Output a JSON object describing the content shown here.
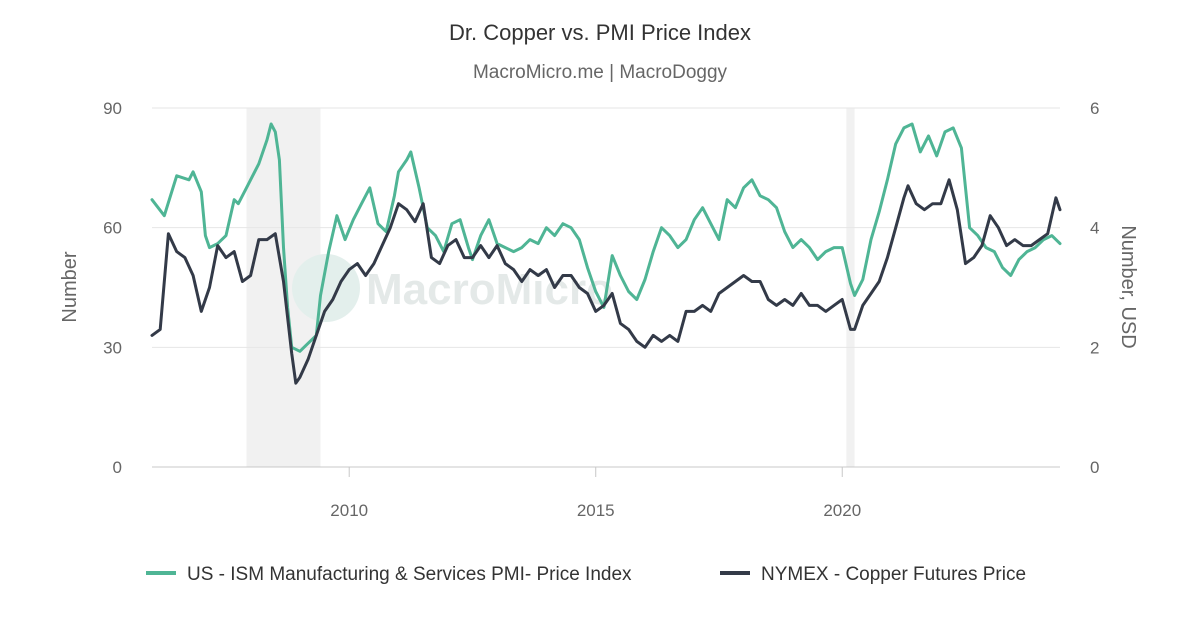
{
  "chart_data": {
    "type": "line",
    "title": "Dr. Copper vs. PMI Price Index",
    "subtitle": "MacroMicro.me | MacroDoggy",
    "watermark": "MacroMicro",
    "x_range": [
      "2006-01-01",
      "2024-06-01"
    ],
    "x_ticks": [
      "2010",
      "2015",
      "2020"
    ],
    "y_left": {
      "label": "Number",
      "ticks": [
        "0",
        "30",
        "60",
        "90"
      ],
      "range": [
        0,
        90
      ]
    },
    "y_right": {
      "label": "Number, USD",
      "ticks": [
        "0",
        "2",
        "4",
        "6"
      ],
      "range": [
        0,
        6
      ]
    },
    "recessions": [
      {
        "start": "2007-12-01",
        "end": "2009-06-01"
      },
      {
        "start": "2020-02-01",
        "end": "2020-04-01"
      }
    ],
    "legend_position": "bottom",
    "series": [
      {
        "name": "US - ISM Manufacturing & Services PMI- Price Index",
        "axis": "left",
        "color": "#4fb595",
        "points": [
          [
            "2006-01",
            67
          ],
          [
            "2006-04",
            63
          ],
          [
            "2006-07",
            73
          ],
          [
            "2006-10",
            72
          ],
          [
            "2006-11",
            74
          ],
          [
            "2007-01",
            69
          ],
          [
            "2007-02",
            58
          ],
          [
            "2007-03",
            55
          ],
          [
            "2007-05",
            56
          ],
          [
            "2007-07",
            58
          ],
          [
            "2007-09",
            67
          ],
          [
            "2007-10",
            66
          ],
          [
            "2007-12",
            70
          ],
          [
            "2008-01",
            72
          ],
          [
            "2008-03",
            76
          ],
          [
            "2008-05",
            82
          ],
          [
            "2008-06",
            86
          ],
          [
            "2008-07",
            84
          ],
          [
            "2008-08",
            77
          ],
          [
            "2008-09",
            55
          ],
          [
            "2008-10",
            40
          ],
          [
            "2008-11",
            30
          ],
          [
            "2009-01",
            29
          ],
          [
            "2009-03",
            31
          ],
          [
            "2009-05",
            33
          ],
          [
            "2009-06",
            43
          ],
          [
            "2009-08",
            54
          ],
          [
            "2009-10",
            63
          ],
          [
            "2009-12",
            57
          ],
          [
            "2010-02",
            62
          ],
          [
            "2010-04",
            66
          ],
          [
            "2010-06",
            70
          ],
          [
            "2010-08",
            61
          ],
          [
            "2010-10",
            59
          ],
          [
            "2010-12",
            68
          ],
          [
            "2011-01",
            74
          ],
          [
            "2011-03",
            77
          ],
          [
            "2011-04",
            79
          ],
          [
            "2011-06",
            70
          ],
          [
            "2011-08",
            60
          ],
          [
            "2011-10",
            58
          ],
          [
            "2011-12",
            54
          ],
          [
            "2012-02",
            61
          ],
          [
            "2012-04",
            62
          ],
          [
            "2012-06",
            55
          ],
          [
            "2012-07",
            52
          ],
          [
            "2012-09",
            58
          ],
          [
            "2012-11",
            62
          ],
          [
            "2013-01",
            56
          ],
          [
            "2013-03",
            55
          ],
          [
            "2013-05",
            54
          ],
          [
            "2013-07",
            55
          ],
          [
            "2013-09",
            57
          ],
          [
            "2013-11",
            56
          ],
          [
            "2014-01",
            60
          ],
          [
            "2014-03",
            58
          ],
          [
            "2014-05",
            61
          ],
          [
            "2014-07",
            60
          ],
          [
            "2014-09",
            57
          ],
          [
            "2014-11",
            50
          ],
          [
            "2015-01",
            44
          ],
          [
            "2015-03",
            40
          ],
          [
            "2015-05",
            53
          ],
          [
            "2015-07",
            48
          ],
          [
            "2015-09",
            44
          ],
          [
            "2015-11",
            42
          ],
          [
            "2016-01",
            47
          ],
          [
            "2016-03",
            54
          ],
          [
            "2016-05",
            60
          ],
          [
            "2016-07",
            58
          ],
          [
            "2016-09",
            55
          ],
          [
            "2016-11",
            57
          ],
          [
            "2017-01",
            62
          ],
          [
            "2017-03",
            65
          ],
          [
            "2017-05",
            61
          ],
          [
            "2017-07",
            57
          ],
          [
            "2017-09",
            67
          ],
          [
            "2017-11",
            65
          ],
          [
            "2018-01",
            70
          ],
          [
            "2018-03",
            72
          ],
          [
            "2018-05",
            68
          ],
          [
            "2018-07",
            67
          ],
          [
            "2018-09",
            65
          ],
          [
            "2018-11",
            59
          ],
          [
            "2019-01",
            55
          ],
          [
            "2019-03",
            57
          ],
          [
            "2019-05",
            55
          ],
          [
            "2019-07",
            52
          ],
          [
            "2019-09",
            54
          ],
          [
            "2019-11",
            55
          ],
          [
            "2020-01",
            55
          ],
          [
            "2020-03",
            46
          ],
          [
            "2020-04",
            43
          ],
          [
            "2020-06",
            47
          ],
          [
            "2020-08",
            57
          ],
          [
            "2020-10",
            64
          ],
          [
            "2020-12",
            72
          ],
          [
            "2021-02",
            81
          ],
          [
            "2021-04",
            85
          ],
          [
            "2021-06",
            86
          ],
          [
            "2021-08",
            79
          ],
          [
            "2021-10",
            83
          ],
          [
            "2021-12",
            78
          ],
          [
            "2022-02",
            84
          ],
          [
            "2022-04",
            85
          ],
          [
            "2022-06",
            80
          ],
          [
            "2022-08",
            60
          ],
          [
            "2022-10",
            58
          ],
          [
            "2022-12",
            55
          ],
          [
            "2023-02",
            54
          ],
          [
            "2023-04",
            50
          ],
          [
            "2023-06",
            48
          ],
          [
            "2023-08",
            52
          ],
          [
            "2023-10",
            54
          ],
          [
            "2023-12",
            55
          ],
          [
            "2024-02",
            57
          ],
          [
            "2024-04",
            58
          ],
          [
            "2024-06",
            56
          ]
        ]
      },
      {
        "name": "NYMEX - Copper Futures Price",
        "axis": "right",
        "color": "#333a48",
        "points": [
          [
            "2006-01",
            2.2
          ],
          [
            "2006-03",
            2.3
          ],
          [
            "2006-05",
            3.9
          ],
          [
            "2006-07",
            3.6
          ],
          [
            "2006-09",
            3.5
          ],
          [
            "2006-11",
            3.2
          ],
          [
            "2007-01",
            2.6
          ],
          [
            "2007-03",
            3.0
          ],
          [
            "2007-05",
            3.7
          ],
          [
            "2007-07",
            3.5
          ],
          [
            "2007-09",
            3.6
          ],
          [
            "2007-11",
            3.1
          ],
          [
            "2008-01",
            3.2
          ],
          [
            "2008-03",
            3.8
          ],
          [
            "2008-05",
            3.8
          ],
          [
            "2008-07",
            3.9
          ],
          [
            "2008-09",
            3.1
          ],
          [
            "2008-11",
            1.9
          ],
          [
            "2008-12",
            1.4
          ],
          [
            "2009-01",
            1.5
          ],
          [
            "2009-03",
            1.8
          ],
          [
            "2009-05",
            2.2
          ],
          [
            "2009-07",
            2.6
          ],
          [
            "2009-09",
            2.8
          ],
          [
            "2009-11",
            3.1
          ],
          [
            "2010-01",
            3.3
          ],
          [
            "2010-03",
            3.4
          ],
          [
            "2010-05",
            3.2
          ],
          [
            "2010-07",
            3.4
          ],
          [
            "2010-09",
            3.7
          ],
          [
            "2010-11",
            4.0
          ],
          [
            "2011-01",
            4.4
          ],
          [
            "2011-03",
            4.3
          ],
          [
            "2011-05",
            4.1
          ],
          [
            "2011-07",
            4.4
          ],
          [
            "2011-09",
            3.5
          ],
          [
            "2011-11",
            3.4
          ],
          [
            "2012-01",
            3.7
          ],
          [
            "2012-03",
            3.8
          ],
          [
            "2012-05",
            3.5
          ],
          [
            "2012-07",
            3.5
          ],
          [
            "2012-09",
            3.7
          ],
          [
            "2012-11",
            3.5
          ],
          [
            "2013-01",
            3.7
          ],
          [
            "2013-03",
            3.4
          ],
          [
            "2013-05",
            3.3
          ],
          [
            "2013-07",
            3.1
          ],
          [
            "2013-09",
            3.3
          ],
          [
            "2013-11",
            3.2
          ],
          [
            "2014-01",
            3.3
          ],
          [
            "2014-03",
            3.0
          ],
          [
            "2014-05",
            3.2
          ],
          [
            "2014-07",
            3.2
          ],
          [
            "2014-09",
            3.0
          ],
          [
            "2014-11",
            2.9
          ],
          [
            "2015-01",
            2.6
          ],
          [
            "2015-03",
            2.7
          ],
          [
            "2015-05",
            2.9
          ],
          [
            "2015-07",
            2.4
          ],
          [
            "2015-09",
            2.3
          ],
          [
            "2015-11",
            2.1
          ],
          [
            "2016-01",
            2.0
          ],
          [
            "2016-03",
            2.2
          ],
          [
            "2016-05",
            2.1
          ],
          [
            "2016-07",
            2.2
          ],
          [
            "2016-09",
            2.1
          ],
          [
            "2016-11",
            2.6
          ],
          [
            "2017-01",
            2.6
          ],
          [
            "2017-03",
            2.7
          ],
          [
            "2017-05",
            2.6
          ],
          [
            "2017-07",
            2.9
          ],
          [
            "2017-09",
            3.0
          ],
          [
            "2017-11",
            3.1
          ],
          [
            "2018-01",
            3.2
          ],
          [
            "2018-03",
            3.1
          ],
          [
            "2018-05",
            3.1
          ],
          [
            "2018-07",
            2.8
          ],
          [
            "2018-09",
            2.7
          ],
          [
            "2018-11",
            2.8
          ],
          [
            "2019-01",
            2.7
          ],
          [
            "2019-03",
            2.9
          ],
          [
            "2019-05",
            2.7
          ],
          [
            "2019-07",
            2.7
          ],
          [
            "2019-09",
            2.6
          ],
          [
            "2019-11",
            2.7
          ],
          [
            "2020-01",
            2.8
          ],
          [
            "2020-03",
            2.3
          ],
          [
            "2020-04",
            2.3
          ],
          [
            "2020-06",
            2.7
          ],
          [
            "2020-08",
            2.9
          ],
          [
            "2020-10",
            3.1
          ],
          [
            "2020-12",
            3.5
          ],
          [
            "2021-02",
            4.0
          ],
          [
            "2021-04",
            4.5
          ],
          [
            "2021-05",
            4.7
          ],
          [
            "2021-07",
            4.4
          ],
          [
            "2021-09",
            4.3
          ],
          [
            "2021-11",
            4.4
          ],
          [
            "2022-01",
            4.4
          ],
          [
            "2022-03",
            4.8
          ],
          [
            "2022-05",
            4.3
          ],
          [
            "2022-07",
            3.4
          ],
          [
            "2022-09",
            3.5
          ],
          [
            "2022-11",
            3.7
          ],
          [
            "2023-01",
            4.2
          ],
          [
            "2023-03",
            4.0
          ],
          [
            "2023-05",
            3.7
          ],
          [
            "2023-07",
            3.8
          ],
          [
            "2023-09",
            3.7
          ],
          [
            "2023-11",
            3.7
          ],
          [
            "2024-01",
            3.8
          ],
          [
            "2024-03",
            3.9
          ],
          [
            "2024-05",
            4.5
          ],
          [
            "2024-06",
            4.3
          ]
        ]
      }
    ]
  }
}
